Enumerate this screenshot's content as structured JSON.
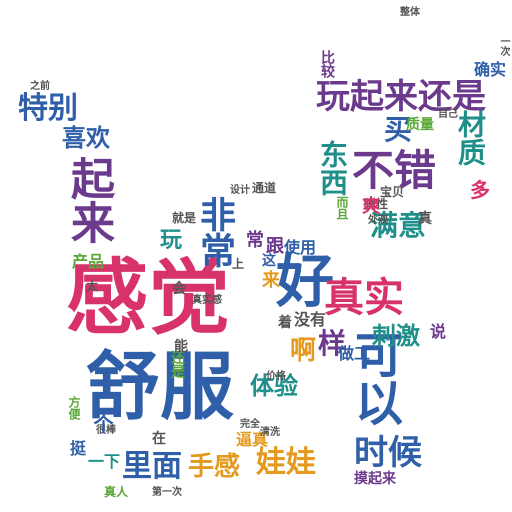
{
  "words": [
    {
      "id": "w01",
      "text": "感觉",
      "color": "#d8326a"
    },
    {
      "id": "w02",
      "text": "舒服",
      "color": "#2f5fa8"
    },
    {
      "id": "w03",
      "text": "好",
      "color": "#2f5fa8"
    },
    {
      "id": "w04",
      "text": "非常",
      "color": "#2f5fa8"
    },
    {
      "id": "w05",
      "text": "起来",
      "color": "#6b3a8c"
    },
    {
      "id": "w06",
      "text": "不错",
      "color": "#6b3a8c"
    },
    {
      "id": "w07",
      "text": "玩起来还是",
      "color": "#6b3a8c"
    },
    {
      "id": "w08",
      "text": "可以",
      "color": "#2f5fa8"
    },
    {
      "id": "w09",
      "text": "真实",
      "color": "#d8326a"
    },
    {
      "id": "w10",
      "text": "时候",
      "color": "#2f5fa8"
    },
    {
      "id": "w11",
      "text": "娃娃",
      "color": "#e39a1f"
    },
    {
      "id": "w12",
      "text": "手感",
      "color": "#e39a1f"
    },
    {
      "id": "w13",
      "text": "里面",
      "color": "#2f5fa8"
    },
    {
      "id": "w14",
      "text": "特别",
      "color": "#2f5fa8"
    },
    {
      "id": "w15",
      "text": "喜欢",
      "color": "#2f5fa8"
    },
    {
      "id": "w16",
      "text": "东西",
      "color": "#1f8f8a"
    },
    {
      "id": "w17",
      "text": "满意",
      "color": "#1f8f8a"
    },
    {
      "id": "w18",
      "text": "材质",
      "color": "#1f8f8a"
    },
    {
      "id": "w19",
      "text": "体验",
      "color": "#1f8f8a"
    },
    {
      "id": "w20",
      "text": "刺激",
      "color": "#1f8f8a"
    },
    {
      "id": "w21",
      "text": "使用",
      "color": "#2f5fa8"
    },
    {
      "id": "w22",
      "text": "跟",
      "color": "#6b3a8c"
    },
    {
      "id": "w23",
      "text": "样",
      "color": "#6b3a8c"
    },
    {
      "id": "w24",
      "text": "啊",
      "color": "#e39a1f"
    },
    {
      "id": "w25",
      "text": "买",
      "color": "#2f5fa8"
    },
    {
      "id": "w26",
      "text": "多",
      "color": "#d8326a"
    },
    {
      "id": "w27",
      "text": "玩",
      "color": "#1f8f8a"
    },
    {
      "id": "w28",
      "text": "确实",
      "color": "#2f5fa8"
    },
    {
      "id": "w29",
      "text": "产品",
      "color": "#5aa83a"
    },
    {
      "id": "w30",
      "text": "还是",
      "color": "#5aa83a"
    },
    {
      "id": "w31",
      "text": "没有",
      "color": "#555555"
    },
    {
      "id": "w32",
      "text": "逼真",
      "color": "#e39a1f"
    },
    {
      "id": "w33",
      "text": "摸起来",
      "color": "#6b3a8c"
    },
    {
      "id": "w34",
      "text": "质量",
      "color": "#5aa83a"
    },
    {
      "id": "w35",
      "text": "比较",
      "color": "#6b3a8c"
    },
    {
      "id": "w36",
      "text": "做工",
      "color": "#2f5fa8"
    },
    {
      "id": "w37",
      "text": "一下",
      "color": "#1f8f8a"
    },
    {
      "id": "w38",
      "text": "挺",
      "color": "#2f5fa8"
    },
    {
      "id": "w39",
      "text": "真人",
      "color": "#5aa83a"
    },
    {
      "id": "w40",
      "text": "说",
      "color": "#6b3a8c"
    },
    {
      "id": "w41",
      "text": "外观",
      "color": "#555555"
    },
    {
      "id": "w42",
      "text": "弹性",
      "color": "#555555"
    },
    {
      "id": "w43",
      "text": "通道",
      "color": "#555555"
    },
    {
      "id": "w44",
      "text": "就是",
      "color": "#555555"
    },
    {
      "id": "w45",
      "text": "常",
      "color": "#6b3a8c"
    },
    {
      "id": "w46",
      "text": "这",
      "color": "#2f5fa8"
    },
    {
      "id": "w47",
      "text": "在",
      "color": "#555555"
    },
    {
      "id": "w48",
      "text": "会",
      "color": "#555555"
    },
    {
      "id": "w49",
      "text": "能",
      "color": "#555555"
    },
    {
      "id": "w50",
      "text": "之前",
      "color": "#555555"
    },
    {
      "id": "w51",
      "text": "真",
      "color": "#555555"
    },
    {
      "id": "w52",
      "text": "爽",
      "color": "#d8326a"
    },
    {
      "id": "w53",
      "text": "而且",
      "color": "#5aa83a"
    },
    {
      "id": "w54",
      "text": "宝贝",
      "color": "#555555"
    },
    {
      "id": "w55",
      "text": "设计",
      "color": "#555555"
    },
    {
      "id": "w56",
      "text": "一次",
      "color": "#555555"
    },
    {
      "id": "w57",
      "text": "整体",
      "color": "#555555"
    },
    {
      "id": "w58",
      "text": "自己",
      "color": "#555555"
    },
    {
      "id": "w59",
      "text": "真实感",
      "color": "#555555"
    },
    {
      "id": "w60",
      "text": "清洗",
      "color": "#555555"
    },
    {
      "id": "w61",
      "text": "第一次",
      "color": "#555555"
    },
    {
      "id": "w62",
      "text": "价格",
      "color": "#555555"
    },
    {
      "id": "w63",
      "text": "完全",
      "color": "#555555"
    },
    {
      "id": "w64",
      "text": "很棒",
      "color": "#555555"
    },
    {
      "id": "w65",
      "text": "着",
      "color": "#555555"
    },
    {
      "id": "w66",
      "text": "上",
      "color": "#555555"
    },
    {
      "id": "w67",
      "text": "来",
      "color": "#e39a1f"
    },
    {
      "id": "w68",
      "text": "太",
      "color": "#555555"
    },
    {
      "id": "w69",
      "text": "方便",
      "color": "#5aa83a"
    },
    {
      "id": "w70",
      "text": "个",
      "color": "#2f5fa8"
    }
  ]
}
